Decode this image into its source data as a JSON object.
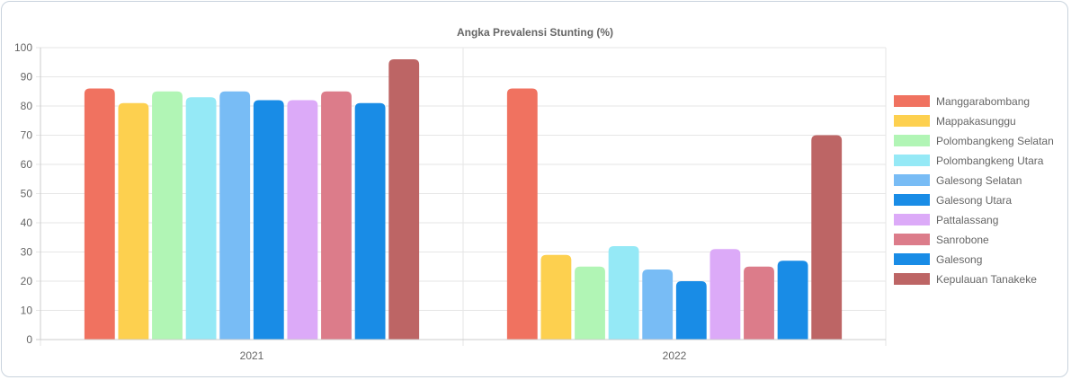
{
  "chart_data": {
    "type": "bar",
    "title": "Angka Prevalensi Stunting (%)",
    "categories": [
      "2021",
      "2022"
    ],
    "ylim": [
      0,
      100
    ],
    "yticks": [
      0,
      10,
      20,
      30,
      40,
      50,
      60,
      70,
      80,
      90,
      100
    ],
    "grid": true,
    "legend_position": "right",
    "series": [
      {
        "name": "Manggarabombang",
        "color": "#f07260",
        "values": [
          86,
          86
        ]
      },
      {
        "name": "Mappakasunggu",
        "color": "#fdd04f",
        "values": [
          81,
          29
        ]
      },
      {
        "name": "Polombangkeng Selatan",
        "color": "#b1f5b5",
        "values": [
          85,
          25
        ]
      },
      {
        "name": "Polombangkeng Utara",
        "color": "#95e9f6",
        "values": [
          83,
          32
        ]
      },
      {
        "name": "Galesong Selatan",
        "color": "#78bcf5",
        "values": [
          85,
          24
        ]
      },
      {
        "name": "Galesong Utara",
        "color": "#198ce6",
        "values": [
          82,
          20
        ]
      },
      {
        "name": "Pattalassang",
        "color": "#dcaaf8",
        "values": [
          82,
          31
        ]
      },
      {
        "name": "Sanrobone",
        "color": "#dc7c8a",
        "values": [
          85,
          25
        ]
      },
      {
        "name": "Galesong",
        "color": "#198ce6",
        "values": [
          81,
          27
        ]
      },
      {
        "name": "Kepulauan Tanakeke",
        "color": "#bd6565",
        "values": [
          96,
          70
        ]
      }
    ]
  }
}
